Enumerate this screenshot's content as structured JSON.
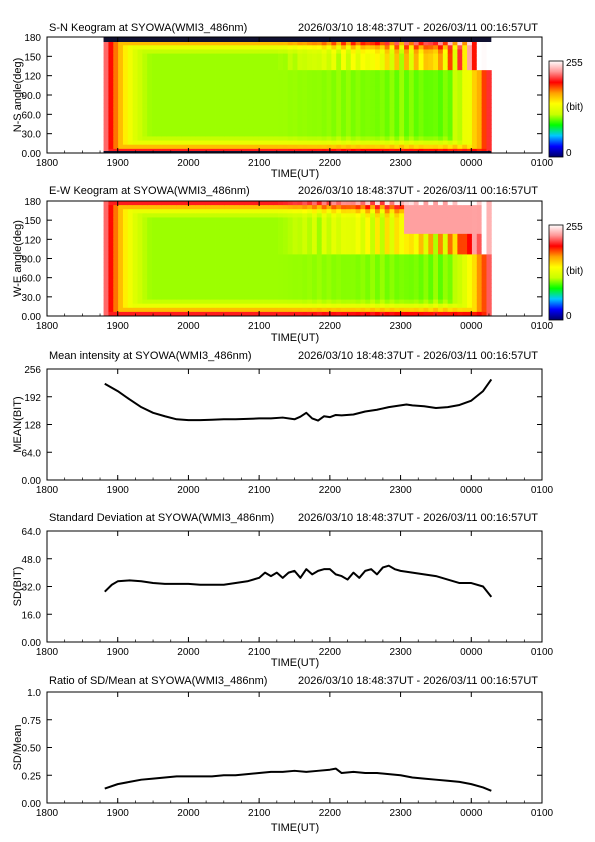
{
  "figure": {
    "time_range": "2026/03/10 18:48:37UT - 2026/03/11 00:16:57UT"
  },
  "palette": {
    "colorbar_stops": [
      "#000066",
      "#0000ff",
      "#00c8ff",
      "#00ff00",
      "#c8ff00",
      "#ffff00",
      "#ffa000",
      "#ff0000",
      "#ff9696",
      "#ffffff"
    ],
    "line_color": "#000000"
  },
  "chart_data": [
    {
      "type": "heatmap",
      "title": "S-N Keogram at SYOWA(WMI3_486nm)",
      "xlabel": "TIME(UT)",
      "ylabel": "N-S angle(deg)",
      "x_ticks": [
        "1800",
        "1900",
        "2000",
        "2100",
        "2200",
        "2300",
        "0000",
        "0100"
      ],
      "y_ticks": [
        "0.00",
        "30.0",
        "60.0",
        "90.0",
        "120",
        "150",
        "180"
      ],
      "ylim": [
        0,
        180
      ],
      "data_range": [
        "18:48",
        "00:17"
      ],
      "colorbar": {
        "max_label": "255",
        "unit_label": "(bit)",
        "min_label": "0",
        "range": [
          0,
          255
        ]
      }
    },
    {
      "type": "heatmap",
      "title": "E-W Keogram at SYOWA(WMI3_486nm)",
      "xlabel": "TIME(UT)",
      "ylabel": "W-E angle(deg)",
      "x_ticks": [
        "1800",
        "1900",
        "2000",
        "2100",
        "2200",
        "2300",
        "0000",
        "0100"
      ],
      "y_ticks": [
        "0.00",
        "30.0",
        "60.0",
        "90.0",
        "120",
        "150",
        "180"
      ],
      "ylim": [
        0,
        180
      ],
      "data_range": [
        "18:48",
        "00:17"
      ],
      "colorbar": {
        "max_label": "255",
        "unit_label": "(bit)",
        "min_label": "0",
        "range": [
          0,
          255
        ]
      }
    },
    {
      "type": "line",
      "title": "Mean intensity at SYOWA(WMI3_486nm)",
      "xlabel": "",
      "ylabel": "MEAN(BIT)",
      "x_ticks": [
        "1800",
        "1900",
        "2000",
        "2100",
        "2200",
        "2300",
        "0000",
        "0100"
      ],
      "y_ticks": [
        "0.00",
        "64.0",
        "128",
        "192",
        "256"
      ],
      "ylim": [
        0,
        256
      ],
      "series": [
        {
          "x": [
            "18:49",
            "19:00",
            "19:10",
            "19:20",
            "19:30",
            "19:40",
            "19:50",
            "20:00",
            "20:10",
            "20:20",
            "20:30",
            "20:40",
            "20:50",
            "21:00",
            "21:10",
            "21:20",
            "21:30",
            "21:35",
            "21:40",
            "21:45",
            "21:50",
            "21:55",
            "22:00",
            "22:05",
            "22:10",
            "22:20",
            "22:30",
            "22:40",
            "22:50",
            "23:00",
            "23:05",
            "23:10",
            "23:20",
            "23:30",
            "23:40",
            "23:50",
            "00:00",
            "00:10",
            "00:17"
          ],
          "y": [
            222,
            205,
            186,
            168,
            155,
            147,
            140,
            138,
            138,
            139,
            140,
            140,
            141,
            142,
            142,
            144,
            140,
            146,
            155,
            142,
            137,
            147,
            145,
            150,
            149,
            151,
            158,
            162,
            168,
            172,
            174,
            172,
            170,
            166,
            168,
            173,
            183,
            205,
            232
          ]
        }
      ]
    },
    {
      "type": "line",
      "title": "Standard Deviation at SYOWA(WMI3_486nm)",
      "xlabel": "TIME(UT)",
      "ylabel": "SD(BIT)",
      "x_ticks": [
        "1800",
        "1900",
        "2000",
        "2100",
        "2200",
        "2300",
        "0000",
        "0100"
      ],
      "y_ticks": [
        "0.00",
        "16.0",
        "32.0",
        "48.0",
        "64.0"
      ],
      "ylim": [
        0,
        64
      ],
      "series": [
        {
          "x": [
            "18:49",
            "18:55",
            "19:00",
            "19:10",
            "19:20",
            "19:30",
            "19:40",
            "19:50",
            "20:00",
            "20:10",
            "20:20",
            "20:30",
            "20:40",
            "20:50",
            "21:00",
            "21:05",
            "21:10",
            "21:15",
            "21:20",
            "21:25",
            "21:30",
            "21:35",
            "21:40",
            "21:45",
            "21:50",
            "21:55",
            "22:00",
            "22:05",
            "22:10",
            "22:15",
            "22:20",
            "22:25",
            "22:30",
            "22:35",
            "22:40",
            "22:45",
            "22:50",
            "22:55",
            "23:00",
            "23:10",
            "23:20",
            "23:30",
            "23:40",
            "23:50",
            "00:00",
            "00:10",
            "00:17"
          ],
          "y": [
            29,
            33,
            35,
            35.5,
            35,
            34,
            33.5,
            33.5,
            33.5,
            33,
            33,
            33,
            34,
            35,
            37,
            40,
            38,
            40,
            37,
            40,
            41,
            37,
            42,
            39,
            41,
            42,
            42,
            39,
            38,
            36,
            40,
            37,
            41,
            42,
            39,
            43,
            44,
            42,
            41,
            40,
            39,
            38,
            36,
            34,
            34,
            32,
            26
          ]
        }
      ]
    },
    {
      "type": "line",
      "title": "Ratio of SD/Mean at SYOWA(WMI3_486nm)",
      "xlabel": "TIME(UT)",
      "ylabel": "SD/Mean",
      "x_ticks": [
        "1800",
        "1900",
        "2000",
        "2100",
        "2200",
        "2300",
        "0000",
        "0100"
      ],
      "y_ticks": [
        "0.00",
        "0.25",
        "0.50",
        "0.75",
        "1.0"
      ],
      "ylim": [
        0,
        1
      ],
      "series": [
        {
          "x": [
            "18:49",
            "19:00",
            "19:10",
            "19:20",
            "19:30",
            "19:40",
            "19:50",
            "20:00",
            "20:10",
            "20:20",
            "20:30",
            "20:40",
            "20:50",
            "21:00",
            "21:10",
            "21:20",
            "21:30",
            "21:40",
            "21:50",
            "22:00",
            "22:05",
            "22:10",
            "22:20",
            "22:30",
            "22:40",
            "22:50",
            "23:00",
            "23:10",
            "23:20",
            "23:30",
            "23:40",
            "23:50",
            "00:00",
            "00:10",
            "00:17"
          ],
          "y": [
            0.13,
            0.17,
            0.19,
            0.21,
            0.22,
            0.23,
            0.24,
            0.24,
            0.24,
            0.24,
            0.25,
            0.25,
            0.26,
            0.27,
            0.28,
            0.28,
            0.29,
            0.28,
            0.29,
            0.3,
            0.31,
            0.27,
            0.28,
            0.27,
            0.27,
            0.26,
            0.25,
            0.23,
            0.22,
            0.21,
            0.2,
            0.19,
            0.17,
            0.14,
            0.11
          ]
        }
      ]
    }
  ]
}
